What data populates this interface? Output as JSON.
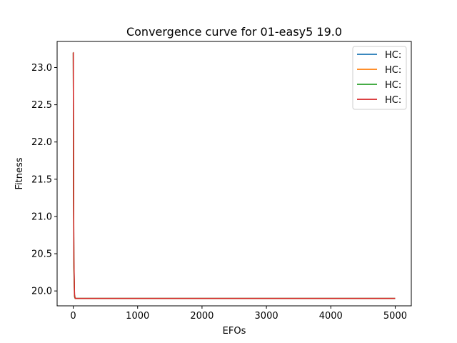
{
  "chart_data": {
    "type": "line",
    "title": "Convergence curve for 01-easy5 19.0",
    "xlabel": "EFOs",
    "ylabel": "Fitness",
    "xlim": [
      -250,
      5250
    ],
    "ylim": [
      19.8,
      23.35
    ],
    "x_ticks": [
      0,
      1000,
      2000,
      3000,
      4000,
      5000
    ],
    "y_ticks": [
      20.0,
      20.5,
      21.0,
      21.5,
      22.0,
      22.5,
      23.0
    ],
    "x_tick_labels": [
      "0",
      "1000",
      "2000",
      "3000",
      "4000",
      "5000"
    ],
    "y_tick_labels": [
      "20.0",
      "20.5",
      "21.0",
      "21.5",
      "22.0",
      "22.5",
      "23.0"
    ],
    "grid": false,
    "legend_position": "top-right",
    "series": [
      {
        "name": "HC:",
        "color": "#1f77b4",
        "x": [
          0,
          1,
          5,
          10,
          20,
          30,
          5000
        ],
        "y": [
          23.2,
          23.2,
          21.5,
          20.4,
          19.95,
          19.9,
          19.9
        ]
      },
      {
        "name": "HC:",
        "color": "#ff7f0e",
        "x": [
          0,
          1,
          5,
          10,
          20,
          30,
          5000
        ],
        "y": [
          23.2,
          23.2,
          21.4,
          20.35,
          19.95,
          19.9,
          19.9
        ]
      },
      {
        "name": "HC:",
        "color": "#2ca02c",
        "x": [
          0,
          1,
          5,
          10,
          20,
          30,
          5000
        ],
        "y": [
          23.2,
          23.2,
          21.3,
          20.3,
          19.92,
          19.9,
          19.9
        ]
      },
      {
        "name": "HC:",
        "color": "#d62728",
        "x": [
          0,
          1,
          5,
          10,
          20,
          30,
          5000
        ],
        "y": [
          23.2,
          23.2,
          21.6,
          20.45,
          19.95,
          19.9,
          19.9
        ]
      }
    ]
  }
}
